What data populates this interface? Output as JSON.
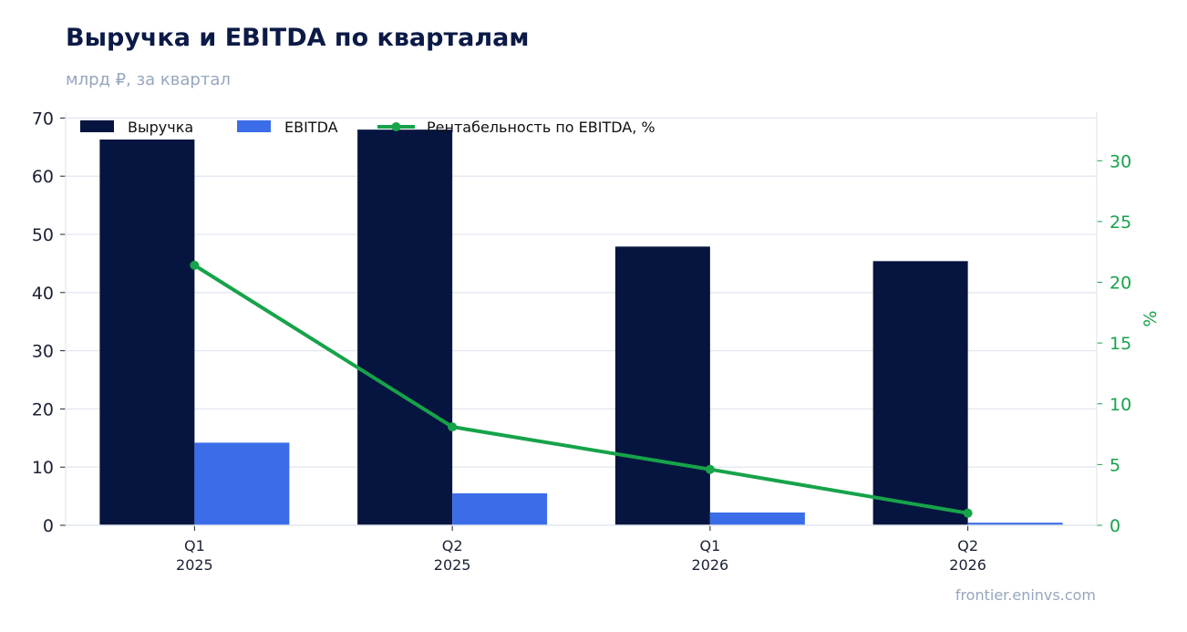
{
  "header": {
    "title": "Выручка и EBITDA по кварталам",
    "subtitle": "млрд ₽, за квартал"
  },
  "footer": {
    "source": "frontier.eninvs.com"
  },
  "colors": {
    "revenue": "#06153f",
    "ebitda": "#3b6de8",
    "margin": "#16a34a",
    "grid": "#e3e7f0"
  },
  "chart_data": {
    "type": "bar",
    "categories": [
      {
        "quarter": "Q1",
        "year": "2025"
      },
      {
        "quarter": "Q2",
        "year": "2025"
      },
      {
        "quarter": "Q1",
        "year": "2026"
      },
      {
        "quarter": "Q2",
        "year": "2026"
      }
    ],
    "series": [
      {
        "name": "Выручка",
        "type": "bar",
        "axis": "left",
        "values": [
          66.3,
          68.0,
          47.9,
          45.4
        ]
      },
      {
        "name": "EBITDA",
        "type": "bar",
        "axis": "left",
        "values": [
          14.2,
          5.5,
          2.2,
          0.45
        ]
      },
      {
        "name": "Рентабельность по EBITDA, %",
        "type": "line",
        "axis": "right",
        "values": [
          21.4,
          8.1,
          4.6,
          1.0
        ]
      }
    ],
    "ylim_left": [
      0,
      71
    ],
    "yticks_left": [
      0,
      10,
      20,
      30,
      40,
      50,
      60,
      70
    ],
    "ylim_right": [
      0,
      34
    ],
    "yticks_right": [
      0,
      5,
      10,
      15,
      20,
      25,
      30
    ],
    "ylabel_right": "%",
    "grid": true,
    "legend_position": "top-left"
  }
}
